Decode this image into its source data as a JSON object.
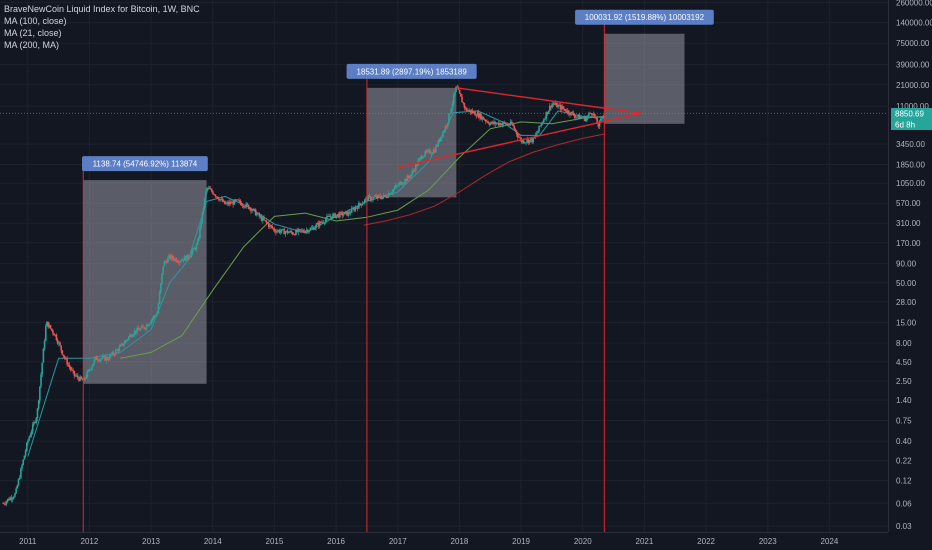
{
  "header": {
    "title": "BraveNewCoin Liquid Index for Bitcoin, 1W, BNC",
    "indicators": [
      "MA (100, close)",
      "MA (21, close)",
      "MA (200, MA)"
    ]
  },
  "price_axis": {
    "current_price": "8850.69",
    "countdown": "6d 8h"
  },
  "colors": {
    "background": "#131722",
    "grid": "#1e222d",
    "up": "#26a69a",
    "down": "#ef5350",
    "vline": "#e0262b",
    "box": "#9598a1",
    "ann": "#5b7ec4",
    "ma100": "#6a9f4b",
    "ma21": "#2a9aa0",
    "ma200": "#b02a2a",
    "hline": "#4caf50"
  },
  "chart_data": {
    "type": "candlestick",
    "title": "BraveNewCoin Liquid Index for Bitcoin, 1W, BNC",
    "x_ticks": [
      "2011",
      "2012",
      "2013",
      "2014",
      "2015",
      "2016",
      "2017",
      "2018",
      "2019",
      "2020",
      "2021",
      "2022",
      "2023",
      "2024"
    ],
    "y_ticks": [
      "260000.00",
      "140000.00",
      "75000.00",
      "39000.00",
      "21000.00",
      "11000.00",
      "3450.00",
      "1850.00",
      "1050.00",
      "570.00",
      "310.00",
      "170.00",
      "90.00",
      "50.00",
      "28.00",
      "15.00",
      "8.00",
      "4.50",
      "2.50",
      "1.40",
      "0.75",
      "0.40",
      "0.22",
      "0.12",
      "0.06",
      "0.03"
    ],
    "y_scale": "log",
    "ylim": [
      0.025,
      280000
    ],
    "xlim": [
      2010.55,
      2024.95
    ],
    "series": [
      {
        "name": "MA (100, close)",
        "x": [
          2012.5,
          2013.0,
          2013.5,
          2014.0,
          2014.5,
          2015.0,
          2015.5,
          2016.0,
          2016.5,
          2017.0,
          2017.5,
          2018.0,
          2018.5,
          2019.0,
          2019.5,
          2020.0,
          2020.35
        ],
        "y": [
          5,
          6,
          10,
          40,
          150,
          380,
          420,
          330,
          370,
          460,
          850,
          2300,
          5500,
          6800,
          6400,
          7600,
          8000
        ]
      },
      {
        "name": "MA (21, close)",
        "x": [
          2011.0,
          2011.5,
          2012.0,
          2012.5,
          2013.0,
          2013.3,
          2013.6,
          2013.9,
          2014.2,
          2014.6,
          2015.0,
          2015.5,
          2016.0,
          2016.5,
          2017.0,
          2017.5,
          2017.9,
          2018.3,
          2018.7,
          2019.0,
          2019.3,
          2019.6,
          2020.0,
          2020.35
        ],
        "y": [
          0.25,
          5,
          5,
          6,
          12,
          50,
          100,
          600,
          700,
          500,
          300,
          230,
          380,
          600,
          800,
          2000,
          9000,
          9500,
          6800,
          4500,
          4500,
          9500,
          8000,
          7800
        ]
      },
      {
        "name": "MA (200, MA)",
        "x": [
          2016.45,
          2016.8,
          2017.2,
          2017.6,
          2018.0,
          2018.4,
          2018.8,
          2019.2,
          2019.6,
          2020.0,
          2020.35
        ],
        "y": [
          290,
          330,
          400,
          520,
          800,
          1300,
          2000,
          2700,
          3400,
          4100,
          4700
        ]
      }
    ],
    "price_path": {
      "x": [
        2010.6,
        2010.8,
        2011.0,
        2011.15,
        2011.3,
        2011.45,
        2011.6,
        2011.75,
        2011.9,
        2012.1,
        2012.3,
        2012.5,
        2012.7,
        2012.9,
        2013.1,
        2013.2,
        2013.3,
        2013.45,
        2013.6,
        2013.75,
        2013.9,
        2014.0,
        2014.2,
        2014.4,
        2014.6,
        2014.8,
        2015.0,
        2015.3,
        2015.6,
        2015.9,
        2016.2,
        2016.5,
        2016.8,
        2017.0,
        2017.2,
        2017.4,
        2017.6,
        2017.8,
        2017.95,
        2018.1,
        2018.3,
        2018.5,
        2018.7,
        2018.85,
        2019.0,
        2019.2,
        2019.4,
        2019.5,
        2019.7,
        2019.9,
        2020.05,
        2020.15,
        2020.25,
        2020.35
      ],
      "y": [
        0.06,
        0.08,
        0.4,
        0.9,
        15,
        10,
        5,
        3,
        2.5,
        5,
        5,
        7,
        11,
        13,
        20,
        90,
        110,
        100,
        110,
        160,
        900,
        800,
        550,
        600,
        500,
        350,
        250,
        230,
        260,
        380,
        420,
        650,
        700,
        980,
        1300,
        2500,
        2900,
        6500,
        19500,
        10000,
        8500,
        6500,
        6500,
        6300,
        3800,
        3900,
        8500,
        12000,
        10000,
        8000,
        7500,
        9500,
        6000,
        8850
      ]
    },
    "measurements": [
      {
        "label": "1138.74 (54746.92%) 113874",
        "x0": 2011.9,
        "x1": 2013.9,
        "y0": 2.3,
        "y1": 1150
      },
      {
        "label": "18531.89 (2897.19%) 1853189",
        "x0": 2016.5,
        "x1": 2017.95,
        "y0": 680,
        "y1": 19200
      },
      {
        "label": "100031.92 (1519.88%) 10003192",
        "x0": 2020.35,
        "x1": 2021.65,
        "y0": 6400,
        "y1": 100000
      }
    ],
    "triangle": {
      "apex": [
        2020.95,
        8850
      ],
      "top": [
        2017.95,
        19200
      ],
      "bottom": [
        2018.9,
        3400
      ],
      "bottom_start": [
        2017.0,
        1700
      ]
    },
    "vertical_lines": [
      2011.9,
      2016.5,
      2020.35
    ],
    "horizontal_line": 8850
  }
}
